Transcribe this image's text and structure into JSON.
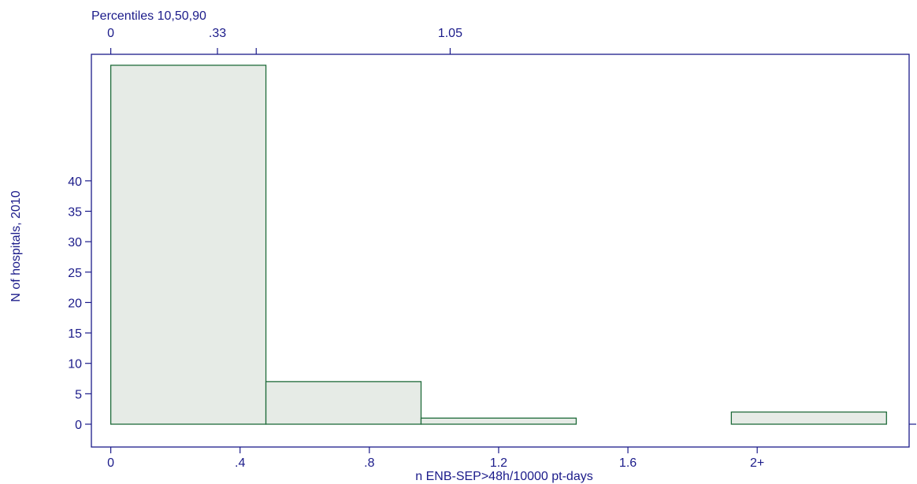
{
  "colors": {
    "text": "#1b1b8a",
    "bar_stroke": "#1f6b3a",
    "bar_fill": "#e6ebe6"
  },
  "chart_data": {
    "type": "bar",
    "title": "",
    "xlabel": "n ENB-SEP>48h/10000 pt-days",
    "ylabel": "N of hospitals, 2010",
    "x_tick_labels": [
      {
        "value": 0,
        "label": "0"
      },
      {
        "value": 0.4,
        "label": ".4"
      },
      {
        "value": 0.8,
        "label": ".8"
      },
      {
        "value": 1.2,
        "label": "1.2"
      },
      {
        "value": 1.6,
        "label": "1.6"
      },
      {
        "value": 2.0,
        "label": "2+"
      }
    ],
    "y_ticks": [
      0,
      5,
      10,
      15,
      20,
      25,
      30,
      35,
      40
    ],
    "ylim": [
      0,
      60
    ],
    "xlim": [
      -0.06,
      2.47
    ],
    "bins": [
      {
        "start": 0.0,
        "end": 0.48,
        "count": 59
      },
      {
        "start": 0.48,
        "end": 0.96,
        "count": 7
      },
      {
        "start": 0.96,
        "end": 1.44,
        "count": 1
      },
      {
        "start": 1.92,
        "end": 2.4,
        "count": 2
      }
    ],
    "top_axis": {
      "label": "Percentiles 10,50,90",
      "ticks": [
        {
          "value": 0,
          "label": "0"
        },
        {
          "value": 0.33,
          "label": ".33"
        },
        {
          "value": 1.05,
          "label": "1.05"
        }
      ],
      "unlabeled_ticks": [
        0.45
      ]
    },
    "grid": false,
    "legend": "none"
  }
}
